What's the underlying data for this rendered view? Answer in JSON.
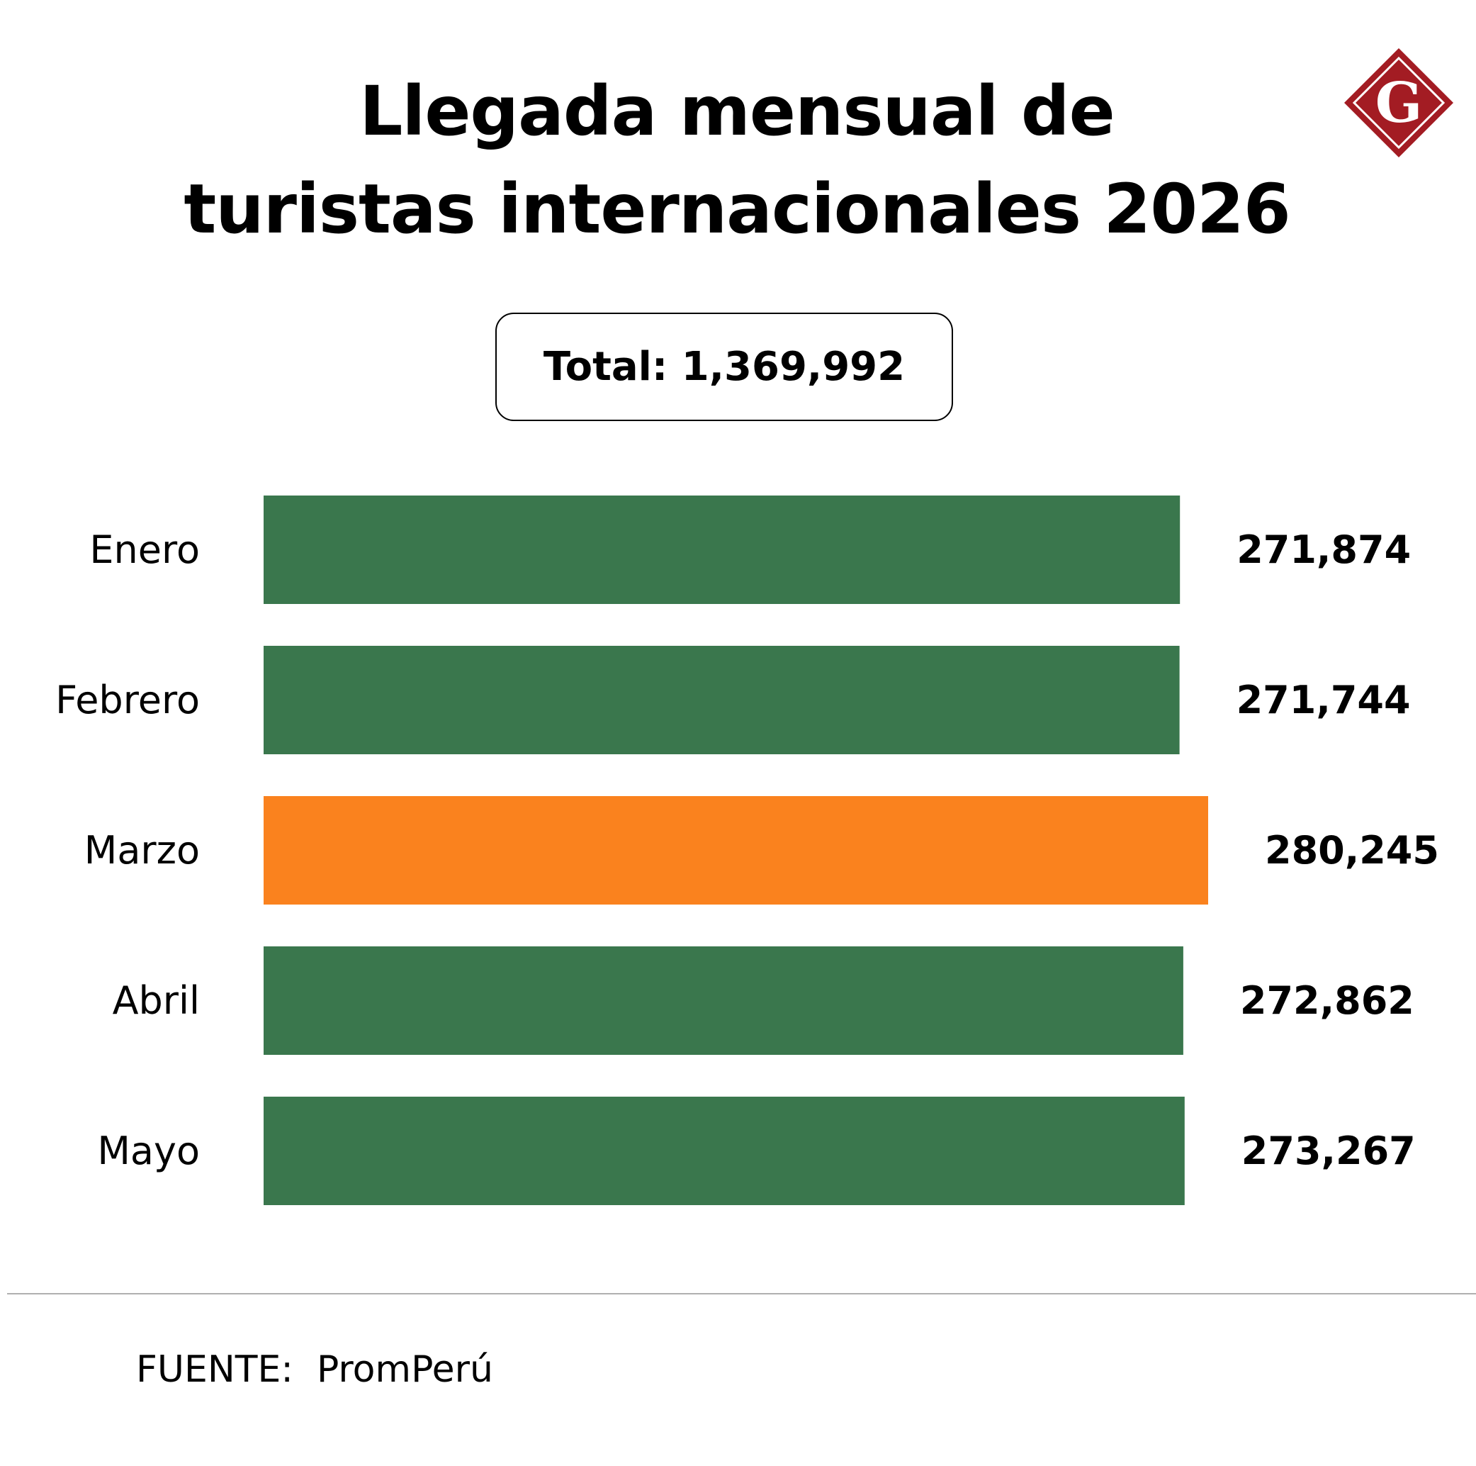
{
  "header": {
    "title_line1": "Llegada mensual de",
    "title_line2": "turistas internacionales 2026",
    "logo_letter": "G",
    "logo_color": "#a31c23"
  },
  "total": {
    "label": "Total:",
    "value": "1,369,992"
  },
  "chart_data": {
    "type": "bar",
    "orientation": "horizontal",
    "categories": [
      "Enero",
      "Febrero",
      "Marzo",
      "Abril",
      "Mayo"
    ],
    "values": [
      271874,
      271744,
      280245,
      272862,
      273267
    ],
    "value_labels": [
      "271,874",
      "271,744",
      "280,245",
      "272,862",
      "273,267"
    ],
    "colors": [
      "#3a774d",
      "#3a774d",
      "#fa821e",
      "#3a774d",
      "#3a774d"
    ],
    "highlight_color": "#fa821e",
    "default_color": "#3a774d",
    "grid": false
  },
  "footer": {
    "source_label": "FUENTE:",
    "source_value": "PromPerú"
  }
}
